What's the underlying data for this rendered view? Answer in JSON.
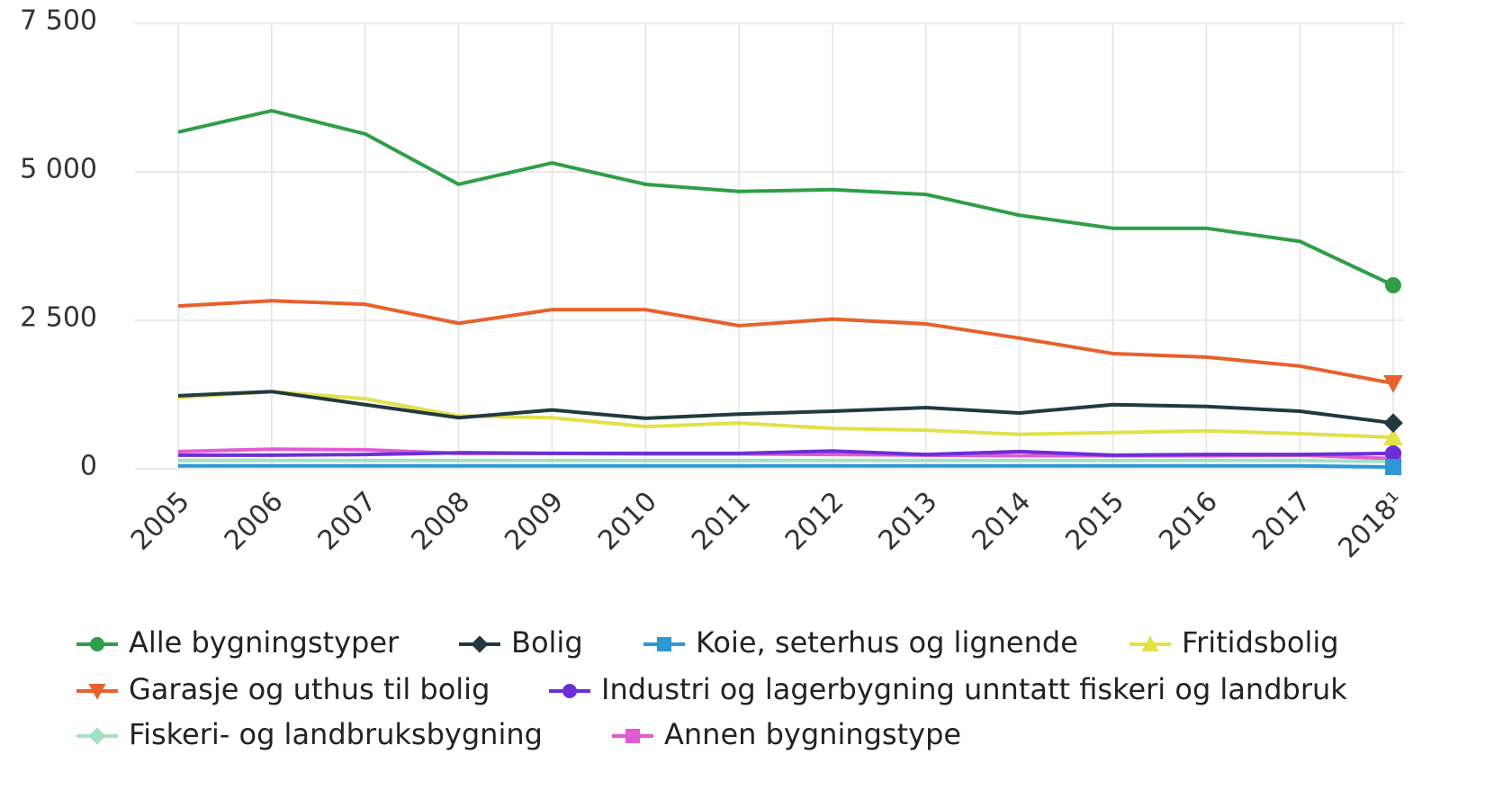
{
  "chart_data": {
    "type": "line",
    "categories": [
      "2005",
      "2006",
      "2007",
      "2008",
      "2009",
      "2010",
      "2011",
      "2012",
      "2013",
      "2014",
      "2015",
      "2016",
      "2017",
      "2018¹"
    ],
    "ylim": [
      0,
      7500
    ],
    "yticks": [
      {
        "value": 0,
        "label": "0"
      },
      {
        "value": 2500,
        "label": "2 500"
      },
      {
        "value": 5000,
        "label": "5 000"
      },
      {
        "value": 7500,
        "label": "7 500"
      }
    ],
    "grid": true,
    "legend": "bottom",
    "series": [
      {
        "name": "Alle bygningstyper",
        "color": "#2e9e47",
        "marker": "circle",
        "values": [
          5670,
          6030,
          5640,
          4790,
          5150,
          4790,
          4670,
          4700,
          4620,
          4270,
          4050,
          4050,
          3830,
          3090
        ]
      },
      {
        "name": "Bolig",
        "color": "#203a40",
        "marker": "diamond",
        "values": [
          1230,
          1300,
          1080,
          860,
          990,
          850,
          920,
          970,
          1030,
          940,
          1080,
          1050,
          970,
          770
        ]
      },
      {
        "name": "Koie, seterhus og lignende",
        "color": "#2e97d6",
        "marker": "square",
        "values": [
          50,
          50,
          50,
          50,
          50,
          50,
          50,
          50,
          50,
          50,
          50,
          50,
          50,
          30
        ]
      },
      {
        "name": "Fritidsbolig",
        "color": "#e3e04a",
        "marker": "triangle",
        "values": [
          1200,
          1300,
          1180,
          890,
          860,
          710,
          770,
          680,
          650,
          580,
          610,
          640,
          590,
          530
        ]
      },
      {
        "name": "Garasje og uthus til bolig",
        "color": "#e8602c",
        "marker": "triangle-down",
        "values": [
          2740,
          2830,
          2770,
          2450,
          2680,
          2680,
          2410,
          2520,
          2440,
          2200,
          1940,
          1880,
          1730,
          1440
        ]
      },
      {
        "name": "Industri og lagerbygning unntatt fiskeri og landbruk",
        "color": "#6b2fd6",
        "marker": "circle",
        "values": [
          230,
          230,
          240,
          270,
          260,
          260,
          260,
          300,
          240,
          290,
          230,
          240,
          240,
          260
        ]
      },
      {
        "name": "Fiskeri- og landbruksbygning",
        "color": "#a6e0c4",
        "marker": "diamond",
        "values": [
          140,
          140,
          140,
          140,
          140,
          140,
          140,
          140,
          140,
          140,
          140,
          140,
          140,
          120
        ]
      },
      {
        "name": "Annen bygningstype",
        "color": "#e05bd4",
        "marker": "square",
        "values": [
          290,
          330,
          320,
          260,
          260,
          250,
          250,
          240,
          230,
          220,
          220,
          220,
          230,
          170
        ]
      }
    ]
  }
}
